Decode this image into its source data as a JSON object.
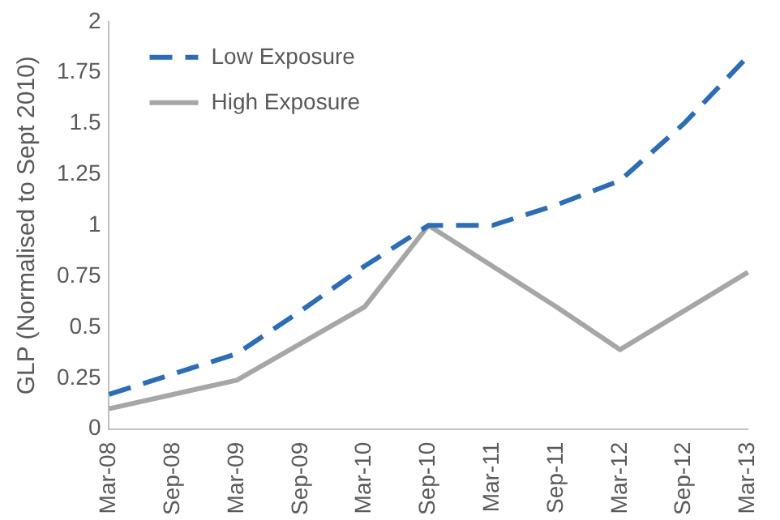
{
  "chart_data": {
    "type": "line",
    "ylabel": "GLP (Normalised to Sept 2010)",
    "categories": [
      "Mar-08",
      "Sep-08",
      "Mar-09",
      "Sep-09",
      "Mar-10",
      "Sep-10",
      "Mar-11",
      "Sep-11",
      "Mar-12",
      "Sep-12",
      "Mar-13"
    ],
    "series": [
      {
        "name": "Low Exposure",
        "color": "#2e6db4",
        "line_style": "dashed",
        "values": [
          0.17,
          0.27,
          0.37,
          0.58,
          0.8,
          1.0,
          1.0,
          1.1,
          1.22,
          1.5,
          1.83
        ]
      },
      {
        "name": "High Exposure",
        "color": "#a6a6a6",
        "line_style": "solid",
        "values": [
          0.1,
          0.17,
          0.24,
          0.42,
          0.6,
          1.0,
          0.8,
          0.6,
          0.39,
          0.58,
          0.77
        ]
      }
    ],
    "ylim": [
      0,
      2
    ],
    "yticks": [
      0,
      0.25,
      0.5,
      {
        "value": 0.75,
        "label": "0.75"
      },
      1,
      1.25,
      1.5,
      1.75,
      2
    ],
    "grid": false,
    "legend": "top left",
    "marker": "none"
  }
}
